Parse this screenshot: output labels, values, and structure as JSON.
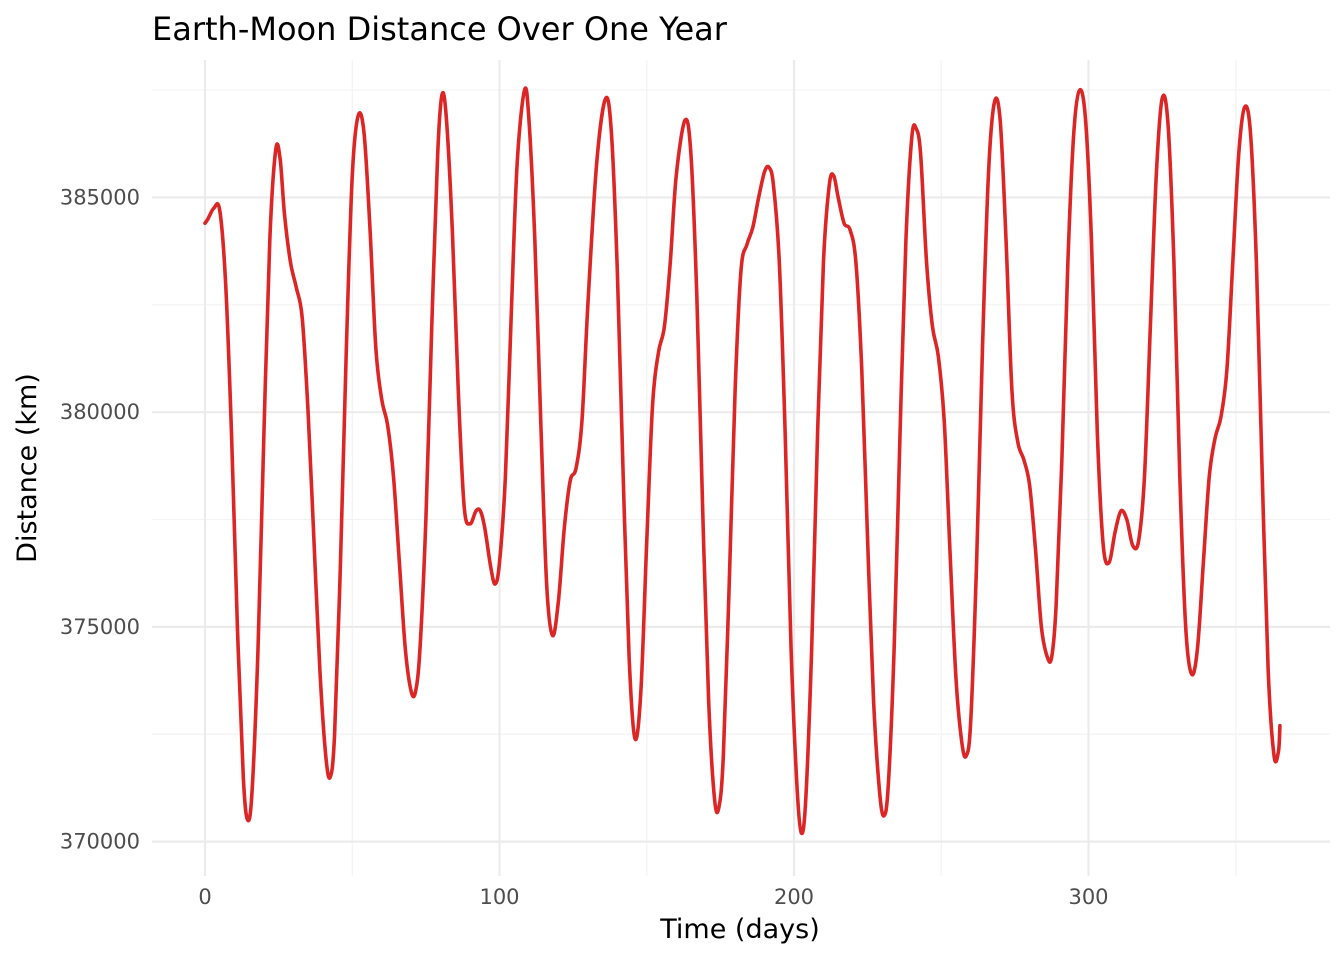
{
  "chart_data": {
    "type": "line",
    "title": "Earth-Moon Distance Over One Year",
    "xlabel": "Time (days)",
    "ylabel": "Distance (km)",
    "xlim": [
      -18,
      382
    ],
    "ylim": [
      369200,
      388200
    ],
    "x_ticks": [
      0,
      100,
      200,
      300
    ],
    "y_ticks": [
      370000,
      375000,
      380000,
      385000
    ],
    "x_tick_labels": [
      "0",
      "100",
      "200",
      "300"
    ],
    "y_tick_labels": [
      "370000",
      "375000",
      "380000",
      "385000"
    ],
    "grid": true,
    "legend": "none",
    "line_color": "#dc2626",
    "series": [
      {
        "points": [
          [
            0,
            384400
          ],
          [
            1,
            384500
          ],
          [
            3,
            384750
          ],
          [
            5,
            384700
          ],
          [
            7,
            383000
          ],
          [
            9,
            379500
          ],
          [
            11,
            375000
          ],
          [
            13,
            371500
          ],
          [
            14.5,
            370500
          ],
          [
            16,
            371200
          ],
          [
            18,
            374500
          ],
          [
            20,
            379500
          ],
          [
            22,
            384000
          ],
          [
            24,
            386100
          ],
          [
            25.5,
            385900
          ],
          [
            27,
            384600
          ],
          [
            29,
            383500
          ],
          [
            31,
            382900
          ],
          [
            33,
            382200
          ],
          [
            35,
            380000
          ],
          [
            37,
            377000
          ],
          [
            39,
            374000
          ],
          [
            41,
            372000
          ],
          [
            42.5,
            371500
          ],
          [
            44,
            372500
          ],
          [
            46,
            376500
          ],
          [
            48,
            381500
          ],
          [
            50,
            385500
          ],
          [
            52,
            386900
          ],
          [
            54,
            386500
          ],
          [
            56,
            384300
          ],
          [
            58,
            381500
          ],
          [
            60,
            380300
          ],
          [
            62,
            379700
          ],
          [
            64,
            378500
          ],
          [
            66,
            376500
          ],
          [
            68,
            374500
          ],
          [
            70,
            373500
          ],
          [
            71.5,
            373500
          ],
          [
            73,
            374500
          ],
          [
            75,
            377500
          ],
          [
            77,
            382000
          ],
          [
            79,
            386000
          ],
          [
            80.5,
            387400
          ],
          [
            82,
            386800
          ],
          [
            84,
            384200
          ],
          [
            86,
            380500
          ],
          [
            88,
            377800
          ],
          [
            90,
            377400
          ],
          [
            92,
            377700
          ],
          [
            93.5,
            377700
          ],
          [
            95,
            377300
          ],
          [
            97,
            376400
          ],
          [
            98.5,
            376000
          ],
          [
            100,
            376500
          ],
          [
            102,
            378500
          ],
          [
            104,
            382300
          ],
          [
            106,
            385800
          ],
          [
            108.5,
            387500
          ],
          [
            110,
            386800
          ],
          [
            112,
            384000
          ],
          [
            114,
            379800
          ],
          [
            116,
            376000
          ],
          [
            118,
            374800
          ],
          [
            120,
            375600
          ],
          [
            122,
            377300
          ],
          [
            124,
            378400
          ],
          [
            126,
            378700
          ],
          [
            128,
            379800
          ],
          [
            130,
            382500
          ],
          [
            133,
            385800
          ],
          [
            136,
            387300
          ],
          [
            138,
            386500
          ],
          [
            140,
            383300
          ],
          [
            142,
            378500
          ],
          [
            144,
            374300
          ],
          [
            146,
            372400
          ],
          [
            148,
            373500
          ],
          [
            150,
            377000
          ],
          [
            152,
            380200
          ],
          [
            154,
            381400
          ],
          [
            156,
            382000
          ],
          [
            158,
            383500
          ],
          [
            160,
            385500
          ],
          [
            163,
            386800
          ],
          [
            165,
            386000
          ],
          [
            167,
            382700
          ],
          [
            169,
            377700
          ],
          [
            171,
            373300
          ],
          [
            173,
            371000
          ],
          [
            174.5,
            370800
          ],
          [
            176,
            372000
          ],
          [
            178,
            376000
          ],
          [
            180,
            380500
          ],
          [
            182,
            383300
          ],
          [
            184,
            383900
          ],
          [
            186,
            384300
          ],
          [
            188,
            385000
          ],
          [
            190,
            385600
          ],
          [
            191.5,
            385700
          ],
          [
            193,
            385300
          ],
          [
            195,
            383500
          ],
          [
            197,
            379500
          ],
          [
            199,
            374500
          ],
          [
            201,
            371300
          ],
          [
            202.5,
            370200
          ],
          [
            204,
            371000
          ],
          [
            206,
            374500
          ],
          [
            208,
            379500
          ],
          [
            210,
            383500
          ],
          [
            212,
            385300
          ],
          [
            213.5,
            385500
          ],
          [
            215,
            385000
          ],
          [
            217,
            384400
          ],
          [
            219,
            384250
          ],
          [
            221,
            383500
          ],
          [
            223,
            381000
          ],
          [
            225,
            377000
          ],
          [
            227,
            373300
          ],
          [
            229,
            371200
          ],
          [
            230.5,
            370600
          ],
          [
            232,
            371300
          ],
          [
            234,
            374500
          ],
          [
            236,
            379500
          ],
          [
            238,
            384000
          ],
          [
            240,
            386400
          ],
          [
            241.5,
            386600
          ],
          [
            243,
            386000
          ],
          [
            245,
            383500
          ],
          [
            247,
            382000
          ],
          [
            249,
            381300
          ],
          [
            251,
            379800
          ],
          [
            253,
            376700
          ],
          [
            255,
            373800
          ],
          [
            257,
            372300
          ],
          [
            258.5,
            372000
          ],
          [
            260,
            372800
          ],
          [
            262,
            376500
          ],
          [
            264,
            381500
          ],
          [
            266,
            385500
          ],
          [
            268,
            387200
          ],
          [
            270,
            386800
          ],
          [
            272,
            384000
          ],
          [
            274,
            380500
          ],
          [
            276,
            379300
          ],
          [
            278,
            378900
          ],
          [
            280,
            378300
          ],
          [
            282,
            376800
          ],
          [
            284,
            375000
          ],
          [
            286,
            374300
          ],
          [
            287.5,
            374300
          ],
          [
            289,
            375500
          ],
          [
            291,
            379000
          ],
          [
            293,
            383500
          ],
          [
            295,
            386500
          ],
          [
            297,
            387500
          ],
          [
            299,
            386800
          ],
          [
            301,
            384000
          ],
          [
            303,
            379500
          ],
          [
            305,
            376900
          ],
          [
            307,
            376500
          ],
          [
            309,
            377200
          ],
          [
            311,
            377700
          ],
          [
            313,
            377500
          ],
          [
            315,
            376900
          ],
          [
            317,
            377000
          ],
          [
            319,
            378500
          ],
          [
            321,
            382000
          ],
          [
            323,
            385500
          ],
          [
            325,
            387300
          ],
          [
            327,
            386700
          ],
          [
            329,
            383500
          ],
          [
            331,
            378500
          ],
          [
            333,
            375000
          ],
          [
            335,
            373900
          ],
          [
            337,
            374500
          ],
          [
            339,
            376500
          ],
          [
            341,
            378500
          ],
          [
            343,
            379400
          ],
          [
            345,
            379900
          ],
          [
            347,
            381000
          ],
          [
            349,
            383500
          ],
          [
            351,
            386000
          ],
          [
            353,
            387100
          ],
          [
            355,
            386500
          ],
          [
            357,
            383500
          ],
          [
            359,
            378500
          ],
          [
            361,
            374000
          ],
          [
            363,
            372000
          ],
          [
            364.5,
            372100
          ],
          [
            365,
            372700
          ]
        ]
      }
    ]
  }
}
